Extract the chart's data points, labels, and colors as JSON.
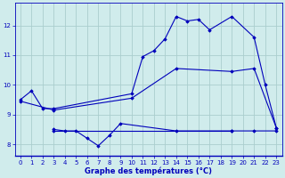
{
  "background_color": "#d0ecec",
  "grid_color": "#aacece",
  "line_color": "#0000bb",
  "xlabel": "Graphe des températures (°C)",
  "xlim": [
    -0.5,
    23.5
  ],
  "ylim": [
    7.6,
    12.75
  ],
  "xticks": [
    0,
    1,
    2,
    3,
    4,
    5,
    6,
    7,
    8,
    9,
    10,
    11,
    12,
    13,
    14,
    15,
    16,
    17,
    18,
    19,
    20,
    21,
    22,
    23
  ],
  "yticks": [
    8,
    9,
    10,
    11,
    12
  ],
  "series": [
    {
      "x": [
        0,
        1,
        2,
        3,
        10,
        11,
        12,
        13,
        14,
        15,
        16,
        17,
        19,
        21,
        22,
        23
      ],
      "y": [
        9.5,
        9.8,
        9.2,
        9.2,
        9.7,
        10.95,
        11.15,
        11.55,
        12.3,
        12.15,
        12.2,
        11.85,
        12.3,
        11.6,
        10.0,
        8.55
      ]
    },
    {
      "x": [
        0,
        3,
        10,
        14,
        19,
        21,
        23
      ],
      "y": [
        9.45,
        9.15,
        9.55,
        10.55,
        10.45,
        10.55,
        8.55
      ]
    },
    {
      "x": [
        3,
        4,
        5,
        6,
        7,
        8,
        9,
        14,
        19,
        21,
        23
      ],
      "y": [
        8.5,
        8.45,
        8.45,
        8.2,
        7.95,
        8.3,
        8.7,
        8.45,
        8.45,
        8.45,
        8.45
      ]
    },
    {
      "x": [
        3,
        19
      ],
      "y": [
        8.45,
        8.45
      ]
    }
  ]
}
